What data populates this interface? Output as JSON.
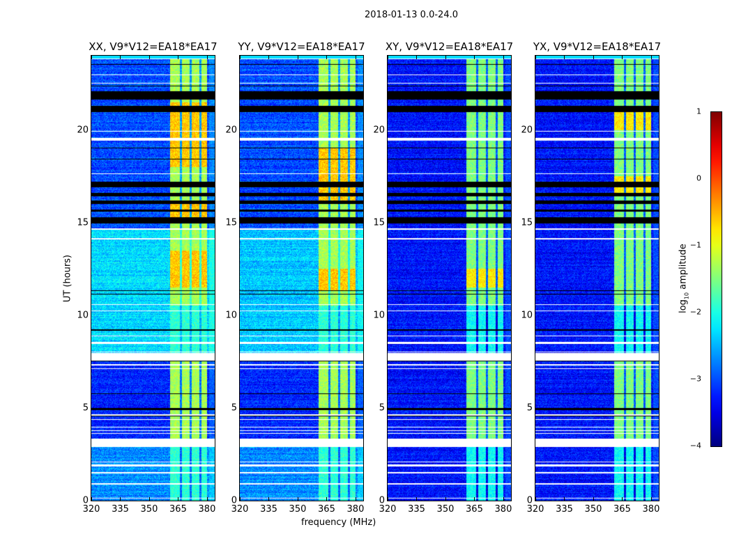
{
  "chart_data": {
    "type": "heatmap",
    "title": "2018-01-13 0.0-24.0",
    "xlabel": "frequency (MHz)",
    "ylabel": "UT (hours)",
    "xlim": [
      320,
      384
    ],
    "ylim": [
      0,
      24
    ],
    "xticks": [
      320,
      335,
      350,
      365,
      380
    ],
    "yticks": [
      0,
      5,
      10,
      15,
      20
    ],
    "colorbar": {
      "label_prefix": "log",
      "label_sub": "10",
      "label_suffix": " amplitude",
      "range": [
        -4,
        1
      ],
      "ticks": [
        "1",
        "0",
        "−1",
        "−2",
        "−3",
        "−4"
      ],
      "colormap": "jet"
    },
    "rfi_band_mhz": [
      361,
      380
    ],
    "rfi_subchannel_gaps_mhz": [
      366.5,
      371.5,
      376.5
    ],
    "flagged_hours_white": [
      [
        0.1,
        0.15
      ],
      [
        0.85,
        0.95
      ],
      [
        1.45,
        1.55
      ],
      [
        1.85,
        1.95
      ],
      [
        2.05,
        2.1
      ],
      [
        2.9,
        3.35
      ],
      [
        3.6,
        3.65
      ],
      [
        3.75,
        3.8
      ],
      [
        3.95,
        4.0
      ],
      [
        4.35,
        4.4
      ],
      [
        4.6,
        4.65
      ],
      [
        7.1,
        7.15
      ],
      [
        7.3,
        7.35
      ],
      [
        7.55,
        7.95
      ],
      [
        8.0,
        8.05
      ],
      [
        8.45,
        8.55
      ],
      [
        8.85,
        8.9
      ],
      [
        10.2,
        10.25
      ],
      [
        10.55,
        10.6
      ],
      [
        14.1,
        14.15
      ],
      [
        14.6,
        14.7
      ],
      [
        17.6,
        17.65
      ],
      [
        19.4,
        19.55
      ],
      [
        19.9,
        19.95
      ],
      [
        22.5,
        22.55
      ],
      [
        22.95,
        23.0
      ],
      [
        23.8,
        23.85
      ]
    ],
    "flagged_hours_black": [
      [
        4.55,
        4.6
      ],
      [
        4.9,
        5.0
      ],
      [
        5.75,
        5.8
      ],
      [
        7.5,
        7.55
      ],
      [
        9.15,
        9.25
      ],
      [
        11.1,
        11.15
      ],
      [
        11.3,
        11.35
      ],
      [
        14.95,
        15.3
      ],
      [
        15.6,
        15.7
      ],
      [
        16.0,
        16.2
      ],
      [
        16.4,
        16.6
      ],
      [
        16.9,
        17.2
      ],
      [
        18.4,
        18.45
      ],
      [
        19.0,
        19.05
      ],
      [
        19.9,
        19.95
      ],
      [
        20.95,
        21.3
      ],
      [
        21.65,
        22.1
      ],
      [
        22.35,
        22.4
      ],
      [
        23.5,
        23.55
      ]
    ],
    "panels": [
      {
        "title": "XX, V9*V12=EA18*EA17",
        "background_segments": [
          {
            "hours": [
              0,
              3
            ],
            "log_amp": -2.7
          },
          {
            "hours": [
              3,
              7.5
            ],
            "log_amp": -3.2
          },
          {
            "hours": [
              7.5,
              14.6
            ],
            "log_amp": -2.3
          },
          {
            "hours": [
              14.6,
              24
            ],
            "log_amp": -3.0
          }
        ],
        "band_log_amp": -1.3,
        "band_hot_hours": [
          [
            11.5,
            13.5
          ],
          [
            15,
            16
          ],
          [
            18,
            21.5
          ]
        ]
      },
      {
        "title": "YY, V9*V12=EA18*EA17",
        "background_segments": [
          {
            "hours": [
              0,
              3
            ],
            "log_amp": -2.7
          },
          {
            "hours": [
              3,
              7.5
            ],
            "log_amp": -3.2
          },
          {
            "hours": [
              7.5,
              14.6
            ],
            "log_amp": -2.4
          },
          {
            "hours": [
              14.6,
              24
            ],
            "log_amp": -3.0
          }
        ],
        "band_log_amp": -1.3,
        "band_hot_hours": [
          [
            11.3,
            12.5
          ],
          [
            16,
            19
          ]
        ]
      },
      {
        "title": "XY, V9*V12=EA18*EA17",
        "background_segments": [
          {
            "hours": [
              0,
              24
            ],
            "log_amp": -3.3
          }
        ],
        "band_log_amp": -1.5,
        "band_hot_hours": [
          [
            11.5,
            12.5
          ]
        ]
      },
      {
        "title": "YX, V9*V12=EA18*EA17",
        "background_segments": [
          {
            "hours": [
              0,
              24
            ],
            "log_amp": -3.3
          }
        ],
        "band_log_amp": -1.5,
        "band_hot_hours": [
          [
            16.5,
            17.5
          ],
          [
            20,
            21
          ]
        ]
      }
    ]
  }
}
